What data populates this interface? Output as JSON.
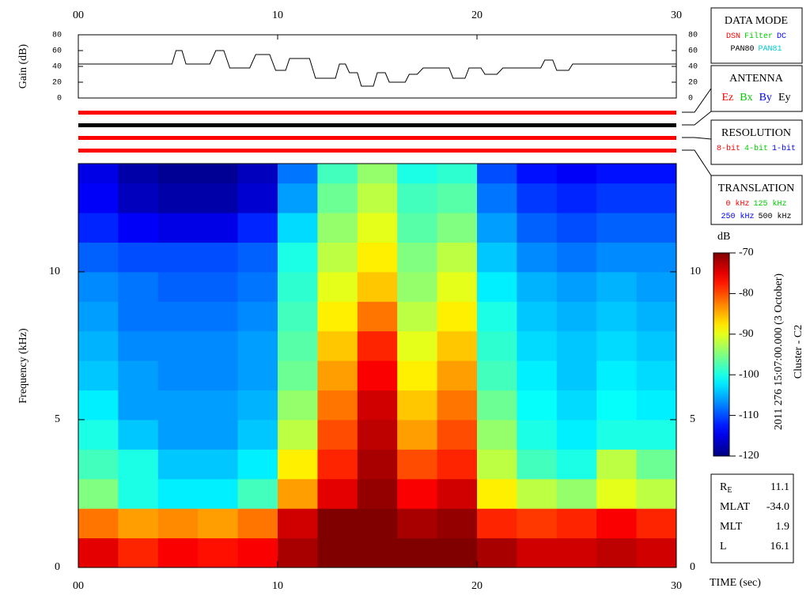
{
  "chart_data": [
    {
      "type": "line",
      "ylabel": "Gain (dB)",
      "color": "#000000",
      "x": [
        0,
        4.7,
        4.9,
        5.2,
        5.4,
        6.6,
        6.9,
        7.3,
        7.6,
        8.6,
        8.9,
        9.6,
        9.9,
        10.4,
        10.6,
        11.6,
        11.9,
        12.9,
        13.1,
        13.4,
        13.6,
        14.0,
        14.2,
        14.8,
        15.0,
        15.4,
        15.6,
        16.4,
        16.6,
        17.0,
        17.3,
        18.6,
        18.8,
        19.4,
        19.6,
        20.2,
        20.4,
        21.0,
        21.3,
        23.2,
        23.4,
        23.8,
        24.0,
        24.6,
        24.8,
        30
      ],
      "values": [
        43,
        43,
        60,
        60,
        43,
        43,
        60,
        60,
        38,
        38,
        55,
        55,
        35,
        35,
        50,
        50,
        25,
        25,
        43,
        43,
        32,
        32,
        15,
        15,
        32,
        32,
        20,
        20,
        30,
        30,
        38,
        38,
        25,
        25,
        38,
        38,
        30,
        30,
        38,
        38,
        48,
        48,
        35,
        35,
        43,
        43
      ],
      "xlim": [
        0,
        30
      ],
      "xticks": [
        {
          "value": 0,
          "label": "00"
        },
        10,
        20,
        30
      ],
      "ylim": [
        0,
        80
      ],
      "yticks": [
        0,
        20,
        40,
        60,
        80
      ]
    },
    {
      "type": "heatmap",
      "ylabel": "Frequency (kHz)",
      "xlabel": "TIME (sec)",
      "colormap": "jet",
      "x_bins": [
        0,
        2,
        4,
        6,
        8,
        10,
        12,
        14,
        16,
        18,
        20,
        22,
        24,
        26,
        28,
        30
      ],
      "y_bins": [
        0,
        1,
        2,
        3,
        4,
        5,
        6,
        7,
        8,
        9,
        10,
        11,
        12,
        13,
        14
      ],
      "values": [
        [
          -75,
          -78,
          -76,
          -77,
          -76,
          -72,
          -70,
          -70,
          -70,
          -70,
          -72,
          -74,
          -74,
          -73,
          -74
        ],
        [
          -82,
          -84,
          -83,
          -84,
          -82,
          -74,
          -70,
          -70,
          -72,
          -71,
          -78,
          -79,
          -78,
          -76,
          -78
        ],
        [
          -95,
          -100,
          -102,
          -102,
          -98,
          -84,
          -75,
          -71,
          -76,
          -74,
          -88,
          -92,
          -94,
          -90,
          -92
        ],
        [
          -98,
          -100,
          -104,
          -104,
          -102,
          -88,
          -78,
          -72,
          -80,
          -78,
          -92,
          -98,
          -100,
          -92,
          -96
        ],
        [
          -100,
          -104,
          -106,
          -106,
          -104,
          -92,
          -80,
          -73,
          -84,
          -80,
          -94,
          -100,
          -102,
          -100,
          -100
        ],
        [
          -102,
          -106,
          -106,
          -106,
          -105,
          -94,
          -82,
          -74,
          -86,
          -82,
          -96,
          -101,
          -103,
          -101,
          -102
        ],
        [
          -104,
          -106,
          -107,
          -107,
          -106,
          -96,
          -84,
          -76,
          -88,
          -84,
          -98,
          -102,
          -104,
          -102,
          -103
        ],
        [
          -105,
          -107,
          -107,
          -107,
          -106,
          -97,
          -86,
          -78,
          -90,
          -86,
          -99,
          -103,
          -104,
          -103,
          -104
        ],
        [
          -106,
          -108,
          -108,
          -108,
          -107,
          -98,
          -88,
          -82,
          -92,
          -88,
          -100,
          -104,
          -105,
          -104,
          -105
        ],
        [
          -107,
          -108,
          -109,
          -109,
          -108,
          -99,
          -90,
          -86,
          -94,
          -90,
          -102,
          -105,
          -106,
          -105,
          -106
        ],
        [
          -109,
          -110,
          -110,
          -110,
          -109,
          -100,
          -92,
          -88,
          -95,
          -92,
          -104,
          -107,
          -108,
          -107,
          -107
        ],
        [
          -112,
          -114,
          -115,
          -115,
          -112,
          -103,
          -94,
          -90,
          -97,
          -95,
          -106,
          -109,
          -110,
          -109,
          -109
        ],
        [
          -114,
          -117,
          -118,
          -118,
          -116,
          -106,
          -96,
          -92,
          -98,
          -97,
          -108,
          -111,
          -112,
          -111,
          -111
        ],
        [
          -115,
          -118,
          -119,
          -119,
          -117,
          -108,
          -98,
          -94,
          -100,
          -99,
          -110,
          -113,
          -114,
          -113,
          -113
        ]
      ],
      "xlim": [
        0,
        30
      ],
      "xticks": [
        {
          "value": 0,
          "label": "00"
        },
        10,
        20,
        30
      ],
      "ylim": [
        0,
        13.66
      ],
      "yticks": [
        0,
        5,
        10
      ],
      "zlim": [
        -120,
        -70
      ],
      "zticks": [
        -70,
        -80,
        -90,
        -100,
        -110,
        -120
      ],
      "zlabel": "dB"
    }
  ],
  "status_bars": [
    {
      "color": "#ff0000"
    },
    {
      "color": "#000000"
    },
    {
      "color": "#ff0000"
    },
    {
      "color": "#ff0000"
    }
  ],
  "legend_boxes": [
    {
      "title": "DATA MODE",
      "rows": [
        [
          {
            "text": "DSN",
            "color": "#ff0000"
          },
          {
            "text": "Filter",
            "color": "#00cc00"
          },
          {
            "text": "DC",
            "color": "#0000ff"
          }
        ],
        [
          {
            "text": "PAN80",
            "color": "#000000"
          },
          {
            "text": "PAN81",
            "color": "#00cccc"
          }
        ]
      ]
    },
    {
      "title": "ANTENNA",
      "rows": [
        [
          {
            "text": "Ez",
            "color": "#ff0000"
          },
          {
            "text": "Bx",
            "color": "#00cc00"
          },
          {
            "text": "By",
            "color": "#0000ff"
          },
          {
            "text": "Ey",
            "color": "#000000"
          }
        ]
      ]
    },
    {
      "title": "RESOLUTION",
      "rows": [
        [
          {
            "text": "8-bit",
            "color": "#ff0000"
          },
          {
            "text": "4-bit",
            "color": "#00cc00"
          },
          {
            "text": "1-bit",
            "color": "#0000ff"
          }
        ]
      ]
    },
    {
      "title": "TRANSLATION",
      "rows": [
        [
          {
            "text": "0 kHz",
            "color": "#ff0000"
          },
          {
            "text": "125 kHz",
            "color": "#00cc00"
          }
        ],
        [
          {
            "text": "250 kHz",
            "color": "#0000ff"
          },
          {
            "text": "500 kHz",
            "color": "#000000"
          }
        ]
      ]
    }
  ],
  "side_text": [
    "2011 276 15:07:00.000 (3 October)",
    "Cluster - C2"
  ],
  "orbit": [
    {
      "label": "R",
      "sub": "E",
      "value": "11.1"
    },
    {
      "label": "MLAT",
      "value": "-34.0"
    },
    {
      "label": "MLT",
      "value": "1.9"
    },
    {
      "label": "L",
      "value": "16.1"
    }
  ]
}
